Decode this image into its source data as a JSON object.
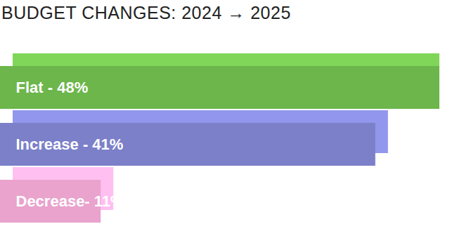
{
  "chart_data": {
    "type": "bar",
    "title": "BUDGET CHANGES: 2024 → 2025",
    "orientation": "horizontal",
    "categories": [
      "Flat - 48%",
      "Increase - 41%",
      "Decrease- 11%"
    ],
    "values": [
      48,
      41,
      11
    ],
    "colors": [
      "#6cb64b",
      "#7c80c9",
      "#e9a3cd"
    ],
    "xlim": [
      0,
      48
    ],
    "tick_labels": false
  }
}
